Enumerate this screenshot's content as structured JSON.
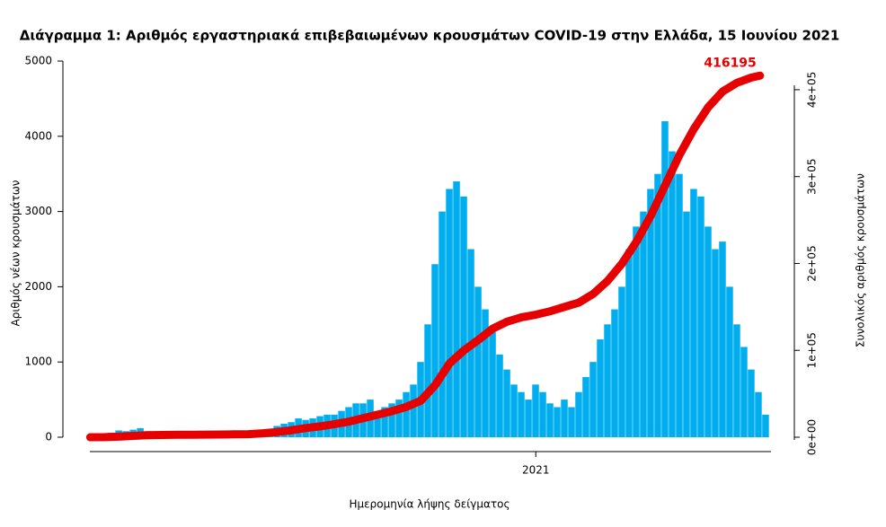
{
  "chart_data": {
    "type": "bar+line",
    "title": "Διάγραμμα 1: Αριθμός εργαστηριακά επιβεβαιωμένων κρουσμάτων COVID-19 στην Ελλάδα, 15 Ιουνίου 2021",
    "x_label": "Ημερομηνία λήψης δείγματος",
    "y_label": "Αριθμός νέων κρουσμάτων",
    "y2_label": "Συνολικός αριθμός κρουσμάτων",
    "xlim": [
      -14,
      478
    ],
    "xticks": [
      {
        "value": 310,
        "label": "2021"
      }
    ],
    "ylim": [
      0,
      5000
    ],
    "yticks": [
      0,
      1000,
      2000,
      3000,
      4000,
      5000
    ],
    "y2lim": [
      0,
      433000
    ],
    "y2ticks": [
      {
        "value": 0,
        "label": "0e+00"
      },
      {
        "value": 100000,
        "label": "1e+05"
      },
      {
        "value": 200000,
        "label": "2e+05"
      },
      {
        "value": 300000,
        "label": "3e+05"
      },
      {
        "value": 400000,
        "label": "4e+05"
      }
    ],
    "series": [
      {
        "type": "bar",
        "color": "#00aeef",
        "x": [
          0,
          5,
          10,
          15,
          20,
          25,
          30,
          35,
          40,
          45,
          50,
          55,
          60,
          65,
          70,
          75,
          80,
          85,
          90,
          95,
          100,
          105,
          110,
          115,
          120,
          125,
          130,
          135,
          140,
          145,
          150,
          155,
          160,
          165,
          170,
          175,
          180,
          185,
          190,
          195,
          200,
          205,
          210,
          215,
          220,
          225,
          230,
          235,
          240,
          245,
          250,
          255,
          260,
          265,
          270,
          275,
          280,
          285,
          290,
          295,
          300,
          305,
          310,
          315,
          320,
          325,
          330,
          335,
          340,
          345,
          350,
          355,
          360,
          365,
          370,
          375,
          380,
          385,
          390,
          395,
          400,
          405,
          410,
          415,
          420,
          425,
          430,
          435,
          440,
          445,
          450,
          455,
          460,
          465,
          470
        ],
        "values": [
          3,
          10,
          40,
          60,
          90,
          80,
          100,
          120,
          80,
          60,
          40,
          20,
          15,
          10,
          15,
          10,
          10,
          15,
          10,
          15,
          20,
          30,
          40,
          50,
          80,
          100,
          150,
          180,
          200,
          250,
          230,
          250,
          280,
          300,
          300,
          350,
          400,
          450,
          450,
          500,
          350,
          400,
          450,
          500,
          600,
          700,
          1000,
          1500,
          2300,
          3000,
          3300,
          3400,
          3200,
          2500,
          2000,
          1700,
          1400,
          1100,
          900,
          700,
          600,
          500,
          700,
          600,
          450,
          400,
          500,
          400,
          600,
          800,
          1000,
          1300,
          1500,
          1700,
          2000,
          2500,
          2800,
          3000,
          3300,
          3500,
          4200,
          3800,
          3500,
          3000,
          3300,
          3200,
          2800,
          2500,
          2600,
          2000,
          1500,
          1200,
          900,
          600,
          300
        ]
      },
      {
        "type": "line",
        "axis": "y2",
        "color": "#e60000",
        "x": [
          0,
          10,
          20,
          30,
          40,
          50,
          60,
          70,
          80,
          90,
          100,
          110,
          120,
          130,
          140,
          150,
          160,
          170,
          180,
          190,
          200,
          210,
          220,
          230,
          240,
          250,
          260,
          270,
          280,
          290,
          300,
          310,
          320,
          330,
          340,
          350,
          360,
          370,
          380,
          390,
          400,
          410,
          420,
          430,
          440,
          450,
          460,
          466
        ],
        "values": [
          0,
          100,
          700,
          1500,
          2300,
          2600,
          2800,
          2900,
          3000,
          3100,
          3300,
          3500,
          4500,
          6000,
          8000,
          10500,
          12500,
          15000,
          18000,
          22000,
          26000,
          30000,
          35000,
          42000,
          60000,
          85000,
          100000,
          112000,
          125000,
          133000,
          138000,
          141000,
          145000,
          150000,
          155000,
          165000,
          180000,
          200000,
          225000,
          255000,
          290000,
          325000,
          355000,
          380000,
          398000,
          408000,
          414000,
          416195
        ],
        "value_labels": [
          null,
          null,
          null,
          null,
          null,
          null,
          null,
          null,
          null,
          null,
          null,
          null,
          null,
          null,
          null,
          null,
          null,
          null,
          null,
          null,
          null,
          null,
          null,
          null,
          null,
          null,
          null,
          null,
          null,
          null,
          null,
          null,
          null,
          null,
          null,
          null,
          null,
          null,
          null,
          null,
          null,
          null,
          null,
          null,
          null,
          null,
          null,
          "416195"
        ]
      }
    ]
  }
}
